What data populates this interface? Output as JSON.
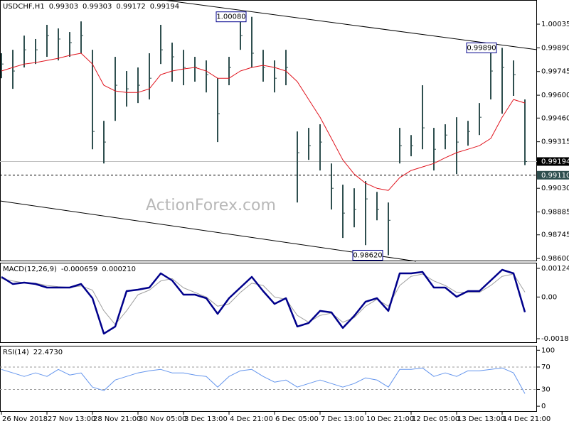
{
  "chart_data": [
    {
      "type": "ohlc",
      "title": "USDCHF,H1",
      "readout": [
        "0.99303",
        "0.99303",
        "0.99172",
        "0.99194"
      ],
      "watermark": "ActionForex.com",
      "color": "#2f4f4f",
      "x": [
        0,
        4,
        8,
        12,
        16,
        20,
        24,
        28,
        32,
        36,
        40,
        44,
        48,
        52,
        56,
        60,
        64,
        68,
        72,
        76,
        80,
        84,
        88,
        92,
        96,
        100,
        104,
        108,
        112,
        116,
        120,
        124,
        128,
        132,
        136,
        140,
        144,
        148,
        152,
        156,
        160,
        164,
        168,
        172,
        176,
        180,
        184
      ],
      "high": [
        0.99857,
        0.99878,
        0.99965,
        0.99944,
        1.00031,
        1.00009,
        0.99987,
        1.00052,
        0.99878,
        0.99443,
        0.99835,
        0.99748,
        0.9977,
        0.99857,
        1.00031,
        0.99922,
        0.99878,
        0.99835,
        0.99813,
        0.99704,
        0.99835,
        1.00052,
        1.0008,
        0.99878,
        0.99813,
        0.99878,
        0.99378,
        0.994,
        0.99422,
        0.99182,
        0.99052,
        0.9903,
        0.99074,
        0.99008,
        0.98943,
        0.994,
        0.99356,
        0.99661,
        0.994,
        0.99422,
        0.99465,
        0.99443,
        0.99552,
        0.99878,
        0.9989,
        0.99813,
        0.99574
      ],
      "low": [
        0.99704,
        0.99639,
        0.9977,
        0.99791,
        0.99835,
        0.99813,
        0.99835,
        0.99857,
        0.99269,
        0.99182,
        0.99443,
        0.9953,
        0.99552,
        0.99574,
        0.99791,
        0.99683,
        0.99661,
        0.99683,
        0.99617,
        0.99313,
        0.99661,
        0.99878,
        0.9977,
        0.99683,
        0.99617,
        0.99661,
        0.98943,
        0.99204,
        0.99139,
        0.989,
        0.98726,
        0.98791,
        0.98682,
        0.98834,
        0.9862,
        0.99182,
        0.99226,
        0.99269,
        0.99139,
        0.99269,
        0.99117,
        0.99291,
        0.99356,
        0.99574,
        0.99487,
        0.99596,
        0.99172
      ],
      "close": [
        0.99791,
        0.99748,
        0.99878,
        0.99878,
        0.99965,
        0.99944,
        0.99922,
        0.99965,
        0.99378,
        0.99313,
        0.99661,
        0.99639,
        0.99661,
        0.99704,
        0.99878,
        0.99835,
        0.9977,
        0.9977,
        0.99726,
        0.99487,
        0.9977,
        0.99965,
        0.99857,
        0.9977,
        0.99704,
        0.9977,
        0.99248,
        0.99291,
        0.99313,
        0.9903,
        0.98878,
        0.989,
        0.98965,
        0.989,
        0.98834,
        0.99291,
        0.99291,
        0.994,
        0.99269,
        0.99356,
        0.99313,
        0.99378,
        0.99465,
        0.99748,
        0.9977,
        0.99726,
        0.99194
      ],
      "series": [
        {
          "color": "#e0141e",
          "width": 1,
          "values": [
            0.99748,
            0.9977,
            0.99791,
            0.998,
            0.99813,
            0.99826,
            0.99844,
            0.99857,
            0.99791,
            0.99661,
            0.99626,
            0.99617,
            0.99617,
            0.99639,
            0.99726,
            0.99748,
            0.99761,
            0.9977,
            0.99748,
            0.99704,
            0.99704,
            0.99748,
            0.9977,
            0.99783,
            0.9977,
            0.99748,
            0.99683,
            0.99574,
            0.99465,
            0.99335,
            0.99204,
            0.99117,
            0.99061,
            0.9903,
            0.99017,
            0.99095,
            0.99139,
            0.99161,
            0.99182,
            0.99217,
            0.99248,
            0.99269,
            0.99291,
            0.99335,
            0.99465,
            0.99574,
            0.99552
          ]
        }
      ],
      "xlim": [
        -0.5,
        188.25
      ],
      "ylim": [
        0.98583,
        1.00183
      ],
      "yticks": [
        1.00035,
        {
          "value": 0.9989,
          "label": "0.99890"
        },
        0.99745,
        {
          "value": 0.996,
          "label": "0.99600"
        },
        {
          "value": 0.9946,
          "label": "0.99460"
        },
        0.99315,
        {
          "value": 0.9903,
          "label": "0.99030"
        },
        0.98885,
        0.98745,
        {
          "value": 0.986,
          "label": "0.98600"
        }
      ],
      "price_line": 0.99194,
      "support_line": {
        "value": 0.9911,
        "label": "0.99110"
      },
      "annotations": [
        {
          "x": 86,
          "value": 1.0008,
          "label": "1.00080"
        },
        {
          "x": 174,
          "value": 0.9989,
          "label": "0.99890"
        },
        {
          "x": 134,
          "value": 0.9862,
          "label": "0.98620"
        }
      ]
    },
    {
      "type": "line",
      "title": "MACD(12,26,9)",
      "readout": [
        "-0.000659",
        "0.000210"
      ],
      "x": [
        0,
        4,
        8,
        12,
        16,
        20,
        24,
        28,
        32,
        36,
        40,
        44,
        48,
        52,
        56,
        60,
        64,
        68,
        72,
        76,
        80,
        84,
        88,
        92,
        96,
        100,
        104,
        108,
        112,
        116,
        120,
        124,
        128,
        132,
        136,
        140,
        144,
        148,
        152,
        156,
        160,
        164,
        168,
        172,
        176,
        180,
        184
      ],
      "series": [
        {
          "color": "#a0a0a0",
          "width": 1,
          "values": [
            0.0008,
            0.0007,
            0.00062,
            0.0006,
            0.0005,
            0.00045,
            0.00042,
            0.00048,
            0.0003,
            -0.0006,
            -0.0012,
            -0.0006,
            0.0001,
            0.0003,
            0.0007,
            0.0008,
            0.0004,
            0.0002,
            0.0,
            -0.0004,
            -0.0003,
            0.0002,
            0.0006,
            0.0005,
            0.0,
            -0.0001,
            -0.0008,
            -0.0011,
            -0.0008,
            -0.0007,
            -0.0011,
            -0.0009,
            -0.0004,
            -0.0001,
            -0.0004,
            0.0005,
            0.0009,
            0.001,
            0.0007,
            0.0005,
            0.0002,
            0.0002,
            0.0002,
            0.0005,
            0.0009,
            0.001,
            0.00021
          ]
        },
        {
          "color": "#00008b",
          "width": 2.5,
          "values": [
            0.000876,
            0.000567,
            0.000629,
            0.000567,
            0.000413,
            0.000413,
            0.000413,
            0.000567,
            -5.1e-05,
            -0.001596,
            -0.001287,
            0.000258,
            0.00032,
            0.000413,
            0.001031,
            0.000722,
            0.000104,
            0.000104,
            -5.1e-05,
            -0.000731,
            -5.1e-05,
            0.000413,
            0.000876,
            0.000258,
            -0.000298,
            -5.1e-05,
            -0.001287,
            -0.001132,
            -0.000607,
            -0.000669,
            -0.001349,
            -0.000823,
            -0.000205,
            -5.1e-05,
            -0.000607,
            0.001031,
            0.001031,
            0.001092,
            0.000413,
            0.000413,
            1.1e-05,
            0.000258,
            0.000258,
            0.000722,
            0.001185,
            0.001031,
            -0.000659
          ]
        }
      ],
      "xlim": [
        -0.5,
        188.25
      ],
      "ylim": [
        -0.002,
        0.001494
      ],
      "yticks": [
        0.001247,
        {
          "value": 0,
          "label": "0.00"
        },
        -0.001815
      ]
    },
    {
      "type": "line",
      "title": "RSI(14)",
      "readout": [
        "22.4730"
      ],
      "x": [
        0,
        4,
        8,
        12,
        16,
        20,
        24,
        28,
        32,
        36,
        40,
        44,
        48,
        52,
        56,
        60,
        64,
        68,
        72,
        76,
        80,
        84,
        88,
        92,
        96,
        100,
        104,
        108,
        112,
        116,
        120,
        124,
        128,
        132,
        136,
        140,
        144,
        148,
        152,
        156,
        160,
        164,
        168,
        172,
        176,
        180,
        184
      ],
      "series": [
        {
          "color": "#6495ed",
          "width": 1,
          "values": [
            65.8,
            59.5,
            53.2,
            59.5,
            53.2,
            65.8,
            55.7,
            59.5,
            34.2,
            27.8,
            46.8,
            53.2,
            59.5,
            63.3,
            65.8,
            59.5,
            59.5,
            55.7,
            53.2,
            34.2,
            53.2,
            63.3,
            65.8,
            53.2,
            43,
            46.8,
            34.2,
            40.5,
            46.8,
            40.5,
            34.2,
            40.5,
            50.6,
            46.8,
            34.2,
            65.8,
            65.8,
            68.4,
            53.2,
            59.5,
            53.2,
            63.3,
            63.3,
            65.8,
            68.4,
            59.5,
            22.473
          ]
        }
      ],
      "xlim": [
        -0.5,
        188.25
      ],
      "ylim": [
        -10,
        108
      ],
      "yticks": [
        100,
        70,
        30,
        0
      ],
      "levels": [
        70,
        30
      ],
      "xticks": [
        {
          "value": 0,
          "label": "26 Nov 2018"
        },
        {
          "value": 16,
          "label": "27 Nov 13:00"
        },
        {
          "value": 32,
          "label": "28 Nov 21:00"
        },
        {
          "value": 48,
          "label": "30 Nov 05:00"
        },
        {
          "value": 64,
          "label": "3 Dec 13:00"
        },
        {
          "value": 80,
          "label": "4 Dec 21:00"
        },
        {
          "value": 96,
          "label": "6 Dec 05:00"
        },
        {
          "value": 112,
          "label": "7 Dec 13:00"
        },
        {
          "value": 128,
          "label": "10 Dec 21:00"
        },
        {
          "value": 144,
          "label": "12 Dec 05:00"
        },
        {
          "value": 160,
          "label": "13 Dec 13:00"
        },
        {
          "value": 176,
          "label": "14 Dec 21:00"
        }
      ]
    }
  ]
}
